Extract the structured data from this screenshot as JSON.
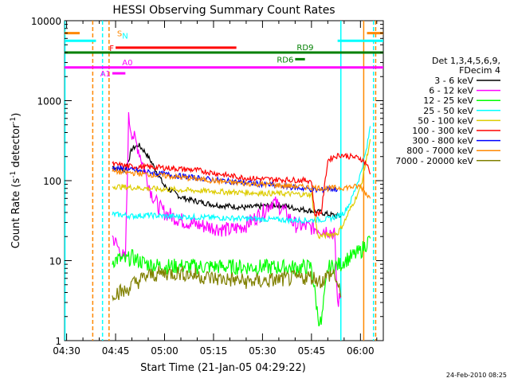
{
  "chart_data": {
    "type": "line",
    "title": "HESSI Observing Summary Count Rates",
    "xlabel": "Start Time (21-Jan-05 04:29:22)",
    "ylabel": "Count Rate (s⁻¹ detector⁻¹)",
    "ylabel_parts": {
      "main": "Count Rate (s",
      "exp1": "-1",
      "mid": " detector",
      "exp2": "-1",
      "end": ")"
    },
    "yscale": "log",
    "ylim": [
      1,
      10000
    ],
    "xlim": [
      "04:29:22",
      "06:07:00"
    ],
    "x_ticks": [
      "04:30",
      "04:45",
      "05:00",
      "05:15",
      "05:30",
      "05:45",
      "06:00"
    ],
    "y_ticks": [
      "1",
      "10",
      "100",
      "1000",
      "10000"
    ],
    "legend_title": [
      "Det 1,3,4,5,6,9,",
      "FDecim 4"
    ],
    "legend_placement": "right",
    "series": [
      {
        "name": "3 - 6 keV",
        "color": "#000000",
        "x": [
          "04:44",
          "04:46",
          "04:48",
          "04:50",
          "04:52",
          "04:54",
          "04:56",
          "04:58",
          "05:00",
          "05:05",
          "05:10",
          "05:15",
          "05:20",
          "05:25",
          "05:30",
          "05:35",
          "05:40",
          "05:45",
          "05:48",
          "05:50",
          "05:52",
          "05:54"
        ],
        "values": [
          150,
          140,
          135,
          250,
          280,
          230,
          170,
          120,
          85,
          62,
          55,
          50,
          48,
          46,
          48,
          50,
          45,
          42,
          40,
          38,
          37,
          36
        ]
      },
      {
        "name": "6 - 12 keV",
        "color": "#ff00ff",
        "x": [
          "04:44",
          "04:46",
          "04:48",
          "04:49",
          "04:50",
          "04:52",
          "04:54",
          "04:56",
          "04:58",
          "05:00",
          "05:05",
          "05:10",
          "05:15",
          "05:20",
          "05:25",
          "05:30",
          "05:33",
          "05:36",
          "05:40",
          "05:45",
          "05:50",
          "05:52",
          "05:53",
          "05:54"
        ],
        "values": [
          20,
          14,
          10,
          600,
          400,
          250,
          130,
          70,
          48,
          40,
          32,
          28,
          26,
          24,
          28,
          40,
          55,
          45,
          28,
          26,
          24,
          22,
          3,
          3.5
        ]
      },
      {
        "name": "12 - 25 keV",
        "color": "#00ff00",
        "x": [
          "04:44",
          "04:46",
          "04:48",
          "04:50",
          "04:52",
          "04:55",
          "05:00",
          "05:05",
          "05:15",
          "05:30",
          "05:40",
          "05:45",
          "05:47",
          "05:48",
          "05:50",
          "05:52",
          "05:54",
          "05:55",
          "05:57",
          "06:00",
          "06:03"
        ],
        "values": [
          10,
          10.5,
          10,
          11,
          10,
          9,
          8.5,
          8.5,
          8.4,
          8.3,
          8.2,
          8.4,
          2,
          1.6,
          8,
          8.6,
          9,
          10,
          11,
          13,
          19
        ]
      },
      {
        "name": "25 - 50 keV",
        "color": "#00ffff",
        "x": [
          "04:44",
          "04:48",
          "04:50",
          "04:55",
          "05:00",
          "05:10",
          "05:20",
          "05:30",
          "05:40",
          "05:45",
          "05:50",
          "05:53",
          "05:55",
          "05:57",
          "06:00",
          "06:02",
          "06:03"
        ],
        "values": [
          38,
          37,
          36,
          37,
          36,
          35,
          34,
          33,
          32,
          32,
          33,
          36,
          40,
          55,
          120,
          260,
          480
        ]
      },
      {
        "name": "50 - 100 keV",
        "color": "#ddcc00",
        "x": [
          "04:44",
          "04:50",
          "05:00",
          "05:10",
          "05:20",
          "05:30",
          "05:40",
          "05:45",
          "05:47",
          "05:50",
          "05:53",
          "05:55",
          "05:57",
          "06:00",
          "06:02",
          "06:03"
        ],
        "values": [
          85,
          82,
          78,
          75,
          72,
          70,
          68,
          67,
          20,
          21,
          22,
          30,
          45,
          80,
          200,
          330
        ]
      },
      {
        "name": "100 - 300 keV",
        "color": "#ff0000",
        "x": [
          "04:44",
          "04:50",
          "04:55",
          "05:00",
          "05:05",
          "05:10",
          "05:15",
          "05:20",
          "05:25",
          "05:30",
          "05:35",
          "05:40",
          "05:45",
          "05:46",
          "05:48",
          "05:50",
          "05:52",
          "05:54",
          "05:57",
          "06:00",
          "06:02",
          "06:03"
        ],
        "values": [
          160,
          150,
          148,
          145,
          140,
          135,
          125,
          115,
          108,
          105,
          103,
          102,
          100,
          38,
          40,
          180,
          200,
          210,
          200,
          190,
          160,
          120
        ]
      },
      {
        "name": "300 - 800 keV",
        "color": "#0000ff",
        "x": [
          "04:44",
          "04:50",
          "05:00",
          "05:10",
          "05:20",
          "05:30",
          "05:40",
          "05:45",
          "05:47",
          "05:50",
          "05:53"
        ],
        "values": [
          145,
          135,
          120,
          108,
          98,
          90,
          82,
          78,
          75,
          80,
          78
        ]
      },
      {
        "name": "800 - 7000 keV",
        "color": "#ff8800",
        "x": [
          "04:44",
          "04:50",
          "05:00",
          "05:10",
          "05:20",
          "05:30",
          "05:40",
          "05:45",
          "05:50",
          "05:55",
          "06:00",
          "06:03"
        ],
        "values": [
          130,
          125,
          115,
          105,
          95,
          90,
          85,
          82,
          80,
          82,
          85,
          60
        ]
      },
      {
        "name": "7000 - 20000 keV",
        "color": "#808000",
        "x": [
          "04:44",
          "04:48",
          "04:50",
          "04:55",
          "05:00",
          "05:05",
          "05:10",
          "05:15",
          "05:20",
          "05:25",
          "05:30",
          "05:35",
          "05:40",
          "05:45",
          "05:46",
          "05:48",
          "05:50",
          "05:52",
          "05:54"
        ],
        "values": [
          4,
          4.1,
          5,
          6.5,
          7,
          7,
          6.5,
          6,
          5.8,
          5.5,
          5.5,
          5.8,
          6,
          6.3,
          6,
          5.5,
          6.5,
          7,
          3.5
        ]
      }
    ],
    "bars": [
      {
        "label": "S",
        "color": "#ff8800",
        "y": 7000,
        "segments": [
          [
            "04:29:22",
            "04:34"
          ],
          [
            "06:02",
            "06:07"
          ]
        ]
      },
      {
        "label": "N",
        "color": "#00ffff",
        "y": 5600,
        "segments": [
          [
            "04:29:22",
            "04:39"
          ],
          [
            "05:53",
            "06:07"
          ]
        ]
      },
      {
        "label": "F",
        "color": "#ff0000",
        "y": 4600,
        "segments": [
          [
            "04:45",
            "05:22"
          ]
        ]
      },
      {
        "label": "RD9",
        "color": "#008000",
        "y": 4000,
        "segments": [
          [
            "04:29:22",
            "06:07"
          ]
        ]
      },
      {
        "label": "RD6",
        "color": "#008000",
        "y": 3300,
        "segments": [
          [
            "05:40",
            "05:43"
          ]
        ]
      },
      {
        "label": "A0",
        "color": "#ff00ff",
        "y": 2600,
        "segments": [
          [
            "04:29:22",
            "06:07"
          ]
        ]
      },
      {
        "label": "A1",
        "color": "#ff00ff",
        "y": 2200,
        "segments": [
          [
            "04:44",
            "04:48"
          ]
        ]
      }
    ],
    "vlines": [
      {
        "x": "04:29:30",
        "color": "#00ffff",
        "style": "solid"
      },
      {
        "x": "04:38",
        "color": "#ff8800",
        "style": "dashed"
      },
      {
        "x": "04:41",
        "color": "#00ffff",
        "style": "dashed"
      },
      {
        "x": "04:43",
        "color": "#ff8800",
        "style": "dashed"
      },
      {
        "x": "05:54",
        "color": "#00ffff",
        "style": "solid"
      },
      {
        "x": "06:01",
        "color": "#ff8800",
        "style": "solid"
      },
      {
        "x": "06:04",
        "color": "#00ffff",
        "style": "dashed"
      },
      {
        "x": "06:04:40",
        "color": "#ff8800",
        "style": "dashed"
      }
    ]
  },
  "footer": {
    "timestamp": "24-Feb-2010 08:25"
  }
}
